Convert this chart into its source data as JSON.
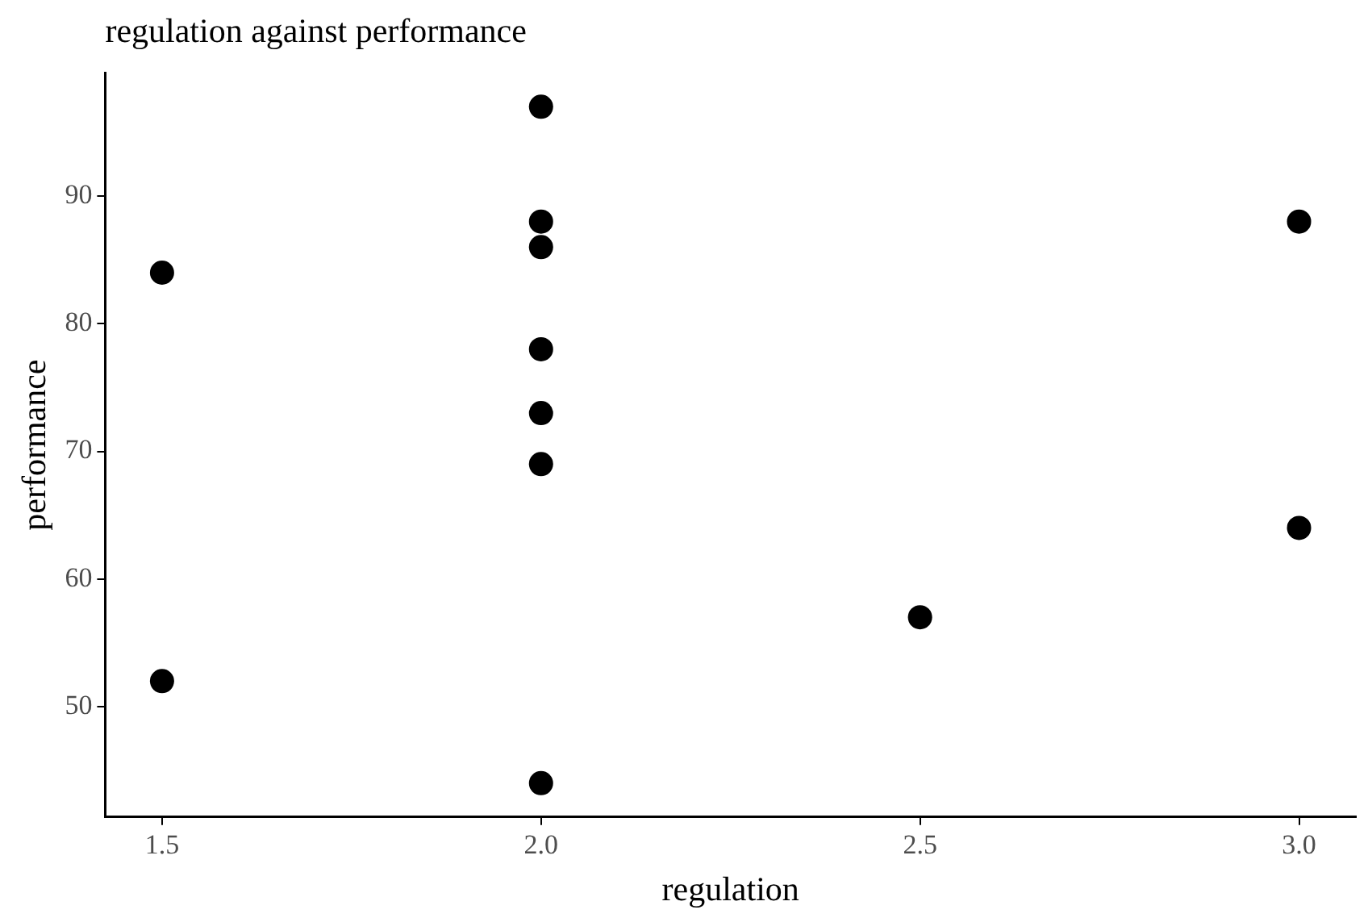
{
  "chart_data": {
    "type": "scatter",
    "title": "regulation against performance",
    "xlabel": "regulation",
    "ylabel": "performance",
    "series": [
      {
        "color": "#000000",
        "x": [
          1.5,
          1.5,
          2,
          2,
          2,
          2,
          2,
          2,
          2,
          2.5,
          3,
          3
        ],
        "values": [
          84,
          52,
          97,
          88,
          86,
          78,
          73,
          69,
          44,
          57,
          88,
          64
        ]
      }
    ],
    "xlim": [
      1.425,
      3.075
    ],
    "xticks": [
      1.5,
      {
        "value": 2,
        "label": "2.0"
      },
      2.5,
      {
        "value": 3,
        "label": "3.0"
      }
    ],
    "ylim": [
      41.35,
      99.65
    ],
    "yticks": [
      50,
      60,
      70,
      80,
      90
    ],
    "grid": false,
    "legend": false,
    "marker": "circle"
  }
}
